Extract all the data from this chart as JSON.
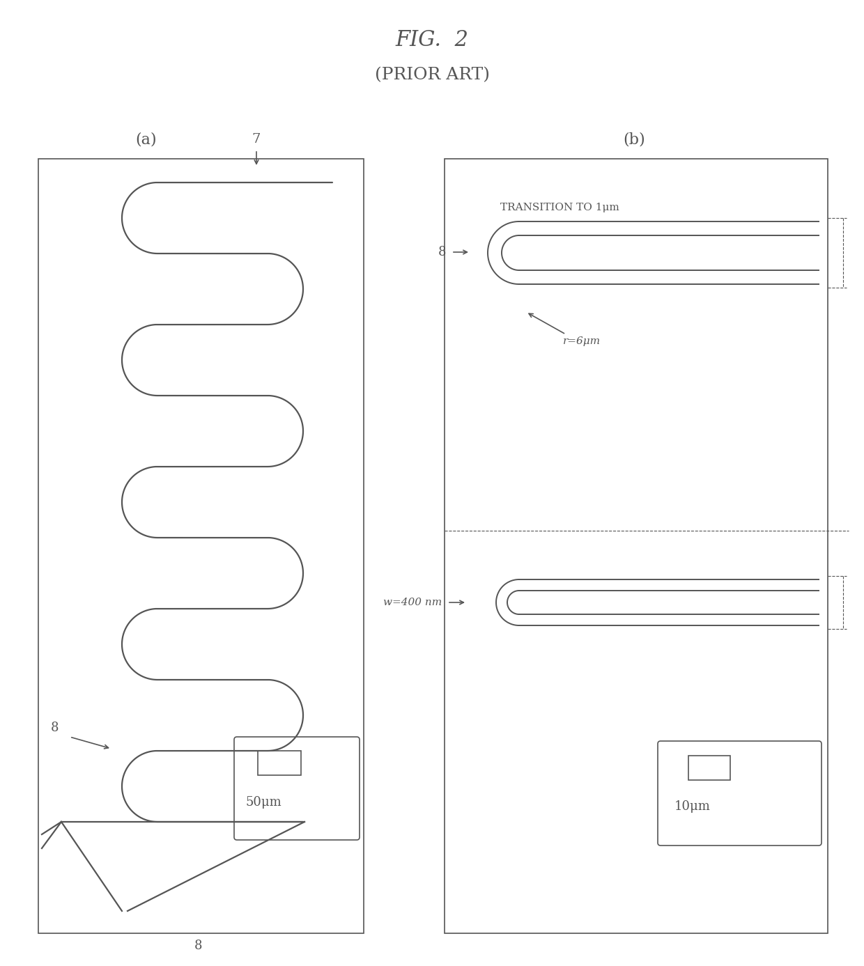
{
  "title": "FIG.  2",
  "subtitle": "(PRIOR ART)",
  "title_fontsize": 22,
  "subtitle_fontsize": 18,
  "bg_color": "#ffffff",
  "line_color": "#555555",
  "label_a": "(a)",
  "label_b": "(b)",
  "label_7": "7",
  "label_8": "8",
  "scale_label_a": "50μm",
  "scale_label_b": "10μm",
  "transition_label": "TRANSITION TO 1μm",
  "radius_label": "r=6μm",
  "width_label": "w=400 nm",
  "font_family": "serif"
}
